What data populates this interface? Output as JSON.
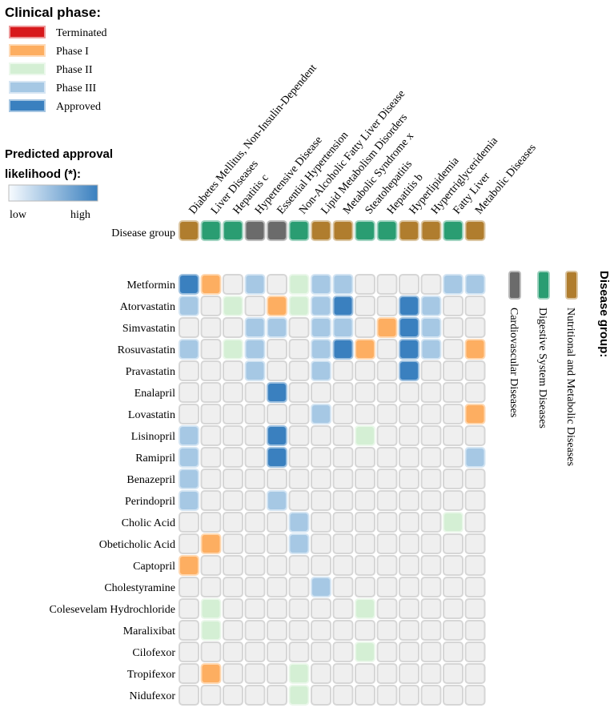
{
  "chart_data": {
    "type": "heatmap",
    "legends": {
      "phase_title": "Clinical phase:",
      "phases": [
        {
          "label": "Terminated",
          "color": "#d7191c"
        },
        {
          "label": "Phase I",
          "color": "#fdae61"
        },
        {
          "label": "Phase II",
          "color": "#d4efd4"
        },
        {
          "label": "Phase III",
          "color": "#a6c8e4"
        },
        {
          "label": "Approved",
          "color": "#3a80bf"
        }
      ],
      "likelihood_title_line1": "Predicted approval",
      "likelihood_title_line2": "likelihood (*):",
      "likelihood_low": "low",
      "likelihood_high": "high",
      "likelihood_gradient": [
        "#f7fbff",
        "#3a80bf"
      ],
      "group_title": "Disease group:",
      "groups": [
        {
          "label": "Cardiovascular Diseases",
          "color": "#6b6b6b"
        },
        {
          "label": "Digestive System Diseases",
          "color": "#2a9d72"
        },
        {
          "label": "Nutritional and Metabolic Diseases",
          "color": "#b07d2e"
        }
      ]
    },
    "group_row_label": "Disease group",
    "diseases": [
      "Diabetes Mellitus, Non-Insulin-Dependent",
      "Liver Diseases",
      "Hepatitis c",
      "Hypertensive Disease",
      "Essential Hypertension",
      "Non-Alcoholic Fatty Liver Disease",
      "Lipid Metabolism Disorders",
      "Metabolic Syndrome x",
      "Steatohepatitis",
      "Hepatitis b",
      "Hyperlipidemia",
      "Hypertriglyceridemia",
      "Fatty Liver",
      "Metabolic Diseases"
    ],
    "disease_groups": [
      2,
      1,
      1,
      0,
      0,
      1,
      2,
      2,
      1,
      1,
      2,
      2,
      1,
      2
    ],
    "drugs": [
      "Metformin",
      "Atorvastatin",
      "Simvastatin",
      "Rosuvastatin",
      "Pravastatin",
      "Enalapril",
      "Lovastatin",
      "Lisinopril",
      "Ramipril",
      "Benazepril",
      "Perindopril",
      "Cholic Acid",
      "Obeticholic Acid",
      "Captopril",
      "Cholestyramine",
      "Colesevelam Hydrochloride",
      "Maralixibat",
      "Cilofexor",
      "Tropifexor",
      "Nidufexor"
    ],
    "phase_codes": {
      "0": "none",
      "1": "Terminated",
      "2": "Phase I",
      "3": "Phase II",
      "4": "Phase III",
      "5": "Approved"
    },
    "matrix": [
      [
        5,
        2,
        0,
        4,
        0,
        3,
        4,
        4,
        0,
        0,
        0,
        0,
        4,
        4
      ],
      [
        4,
        0,
        3,
        0,
        2,
        3,
        4,
        5,
        0,
        0,
        5,
        4,
        0,
        0
      ],
      [
        0,
        0,
        0,
        4,
        4,
        0,
        4,
        4,
        0,
        2,
        5,
        4,
        0,
        0
      ],
      [
        4,
        0,
        3,
        4,
        0,
        0,
        4,
        5,
        2,
        0,
        5,
        4,
        0,
        2
      ],
      [
        0,
        0,
        0,
        4,
        0,
        0,
        4,
        0,
        0,
        0,
        5,
        0,
        0,
        0
      ],
      [
        0,
        0,
        0,
        0,
        5,
        0,
        0,
        0,
        0,
        0,
        0,
        0,
        0,
        0
      ],
      [
        0,
        0,
        0,
        0,
        0,
        0,
        4,
        0,
        0,
        0,
        0,
        0,
        0,
        2
      ],
      [
        4,
        0,
        0,
        0,
        5,
        0,
        0,
        0,
        3,
        0,
        0,
        0,
        0,
        0
      ],
      [
        4,
        0,
        0,
        0,
        5,
        0,
        0,
        0,
        0,
        0,
        0,
        0,
        0,
        4
      ],
      [
        4,
        0,
        0,
        0,
        0,
        0,
        0,
        0,
        0,
        0,
        0,
        0,
        0,
        0
      ],
      [
        4,
        0,
        0,
        0,
        4,
        0,
        0,
        0,
        0,
        0,
        0,
        0,
        0,
        0
      ],
      [
        0,
        0,
        0,
        0,
        0,
        4,
        0,
        0,
        0,
        0,
        0,
        0,
        3,
        0
      ],
      [
        0,
        2,
        0,
        0,
        0,
        4,
        0,
        0,
        0,
        0,
        0,
        0,
        0,
        0
      ],
      [
        2,
        0,
        0,
        0,
        0,
        0,
        0,
        0,
        0,
        0,
        0,
        0,
        0,
        0
      ],
      [
        0,
        0,
        0,
        0,
        0,
        0,
        4,
        0,
        0,
        0,
        0,
        0,
        0,
        0
      ],
      [
        0,
        3,
        0,
        0,
        0,
        0,
        0,
        0,
        3,
        0,
        0,
        0,
        0,
        0
      ],
      [
        0,
        3,
        0,
        0,
        0,
        0,
        0,
        0,
        0,
        0,
        0,
        0,
        0,
        0
      ],
      [
        0,
        0,
        0,
        0,
        0,
        0,
        0,
        0,
        3,
        0,
        0,
        0,
        0,
        0
      ],
      [
        0,
        2,
        0,
        0,
        0,
        3,
        0,
        0,
        0,
        0,
        0,
        0,
        0,
        0
      ],
      [
        0,
        0,
        0,
        0,
        0,
        3,
        0,
        0,
        0,
        0,
        0,
        0,
        0,
        0
      ]
    ],
    "empty_color": "#efefef"
  }
}
